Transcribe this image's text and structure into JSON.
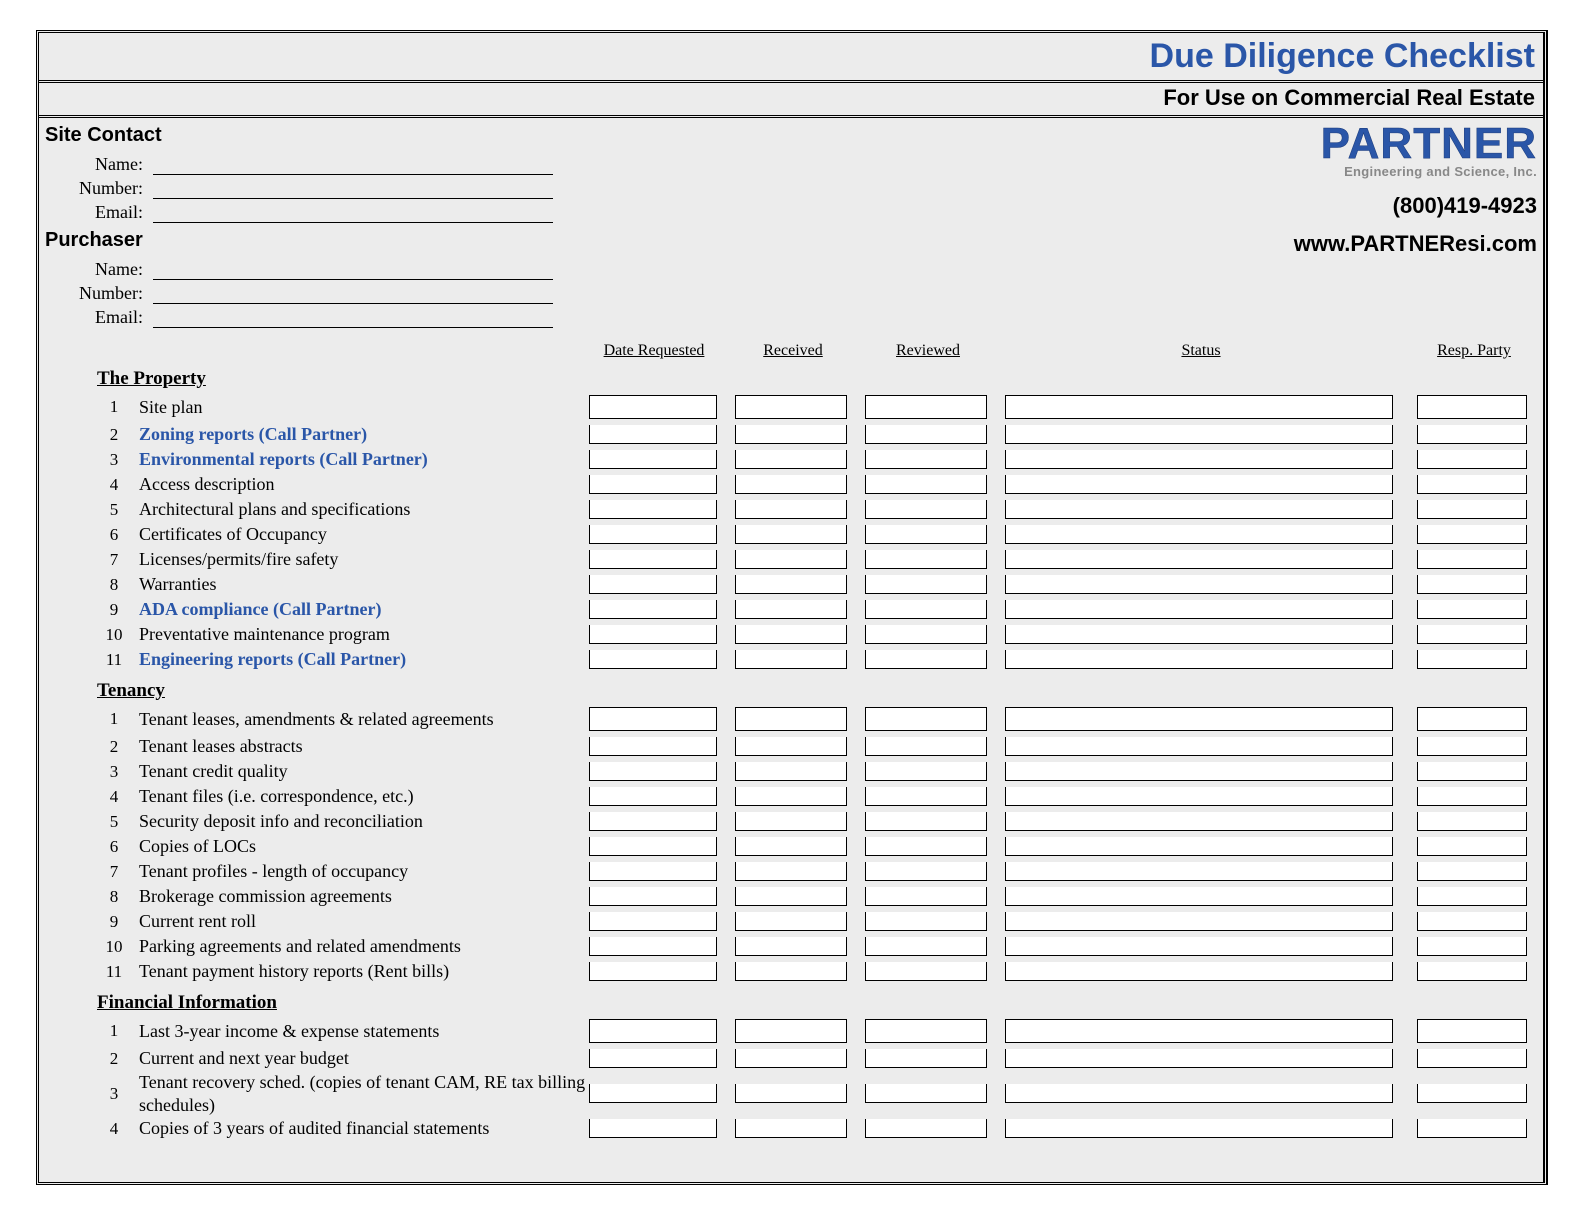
{
  "title": "Due Diligence Checklist",
  "subtitle": "For Use on Commercial Real Estate",
  "logo_main": "PARTNER",
  "logo_sub": "Engineering and Science, Inc.",
  "phone": "(800)419-4923",
  "website": "www.PARTNEResi.com",
  "colors": {
    "title_color": "#2a56a8",
    "highlight_color": "#2a56a8",
    "background": "#ececec",
    "box_background": "#ffffff",
    "border_color": "#000000"
  },
  "site_contact": {
    "heading": "Site Contact",
    "fields": [
      "Name:",
      "Number:",
      "Email:"
    ]
  },
  "purchaser": {
    "heading": "Purchaser",
    "fields": [
      "Name:",
      "Number:",
      "Email:"
    ]
  },
  "columns": {
    "date_requested": "Date Requested",
    "received": "Received",
    "reviewed": "Reviewed",
    "status": "Status",
    "resp_party": "Resp. Party"
  },
  "groups": [
    {
      "title": "The Property",
      "items": [
        {
          "n": "1",
          "text": "Site plan",
          "highlight": false
        },
        {
          "n": "2",
          "text": "Zoning reports (Call Partner)",
          "highlight": true
        },
        {
          "n": "3",
          "text": "Environmental reports (Call Partner)",
          "highlight": true
        },
        {
          "n": "4",
          "text": "Access description",
          "highlight": false
        },
        {
          "n": "5",
          "text": "Architectural plans and specifications",
          "highlight": false
        },
        {
          "n": "6",
          "text": "Certificates of Occupancy",
          "highlight": false
        },
        {
          "n": "7",
          "text": "Licenses/permits/fire safety",
          "highlight": false
        },
        {
          "n": "8",
          "text": "Warranties",
          "highlight": false
        },
        {
          "n": "9",
          "text": "ADA compliance (Call Partner)",
          "highlight": true
        },
        {
          "n": "10",
          "text": "Preventative maintenance program",
          "highlight": false
        },
        {
          "n": "11",
          "text": "Engineering reports (Call Partner)",
          "highlight": true
        }
      ]
    },
    {
      "title": "Tenancy",
      "items": [
        {
          "n": "1",
          "text": "Tenant leases, amendments & related agreements",
          "highlight": false
        },
        {
          "n": "2",
          "text": "Tenant leases abstracts",
          "highlight": false
        },
        {
          "n": "3",
          "text": "Tenant credit quality",
          "highlight": false
        },
        {
          "n": "4",
          "text": "Tenant files (i.e. correspondence, etc.)",
          "highlight": false
        },
        {
          "n": "5",
          "text": "Security deposit info and reconciliation",
          "highlight": false
        },
        {
          "n": "6",
          "text": "Copies of LOCs",
          "highlight": false
        },
        {
          "n": "7",
          "text": "Tenant profiles - length of occupancy",
          "highlight": false
        },
        {
          "n": "8",
          "text": "Brokerage commission agreements",
          "highlight": false
        },
        {
          "n": "9",
          "text": "Current rent roll",
          "highlight": false
        },
        {
          "n": "10",
          "text": "Parking agreements and related amendments",
          "highlight": false
        },
        {
          "n": "11",
          "text": "Tenant payment history reports (Rent bills)",
          "highlight": false
        }
      ]
    },
    {
      "title": "Financial Information",
      "items": [
        {
          "n": "1",
          "text": "Last 3-year income & expense statements",
          "highlight": false
        },
        {
          "n": "2",
          "text": "Current and next year budget",
          "highlight": false
        },
        {
          "n": "3",
          "text": "Tenant recovery sched. (copies of tenant CAM, RE tax billing schedules)",
          "highlight": false,
          "wrap": true
        },
        {
          "n": "4",
          "text": "Copies of 3 years of audited financial statements",
          "highlight": false
        }
      ]
    }
  ]
}
